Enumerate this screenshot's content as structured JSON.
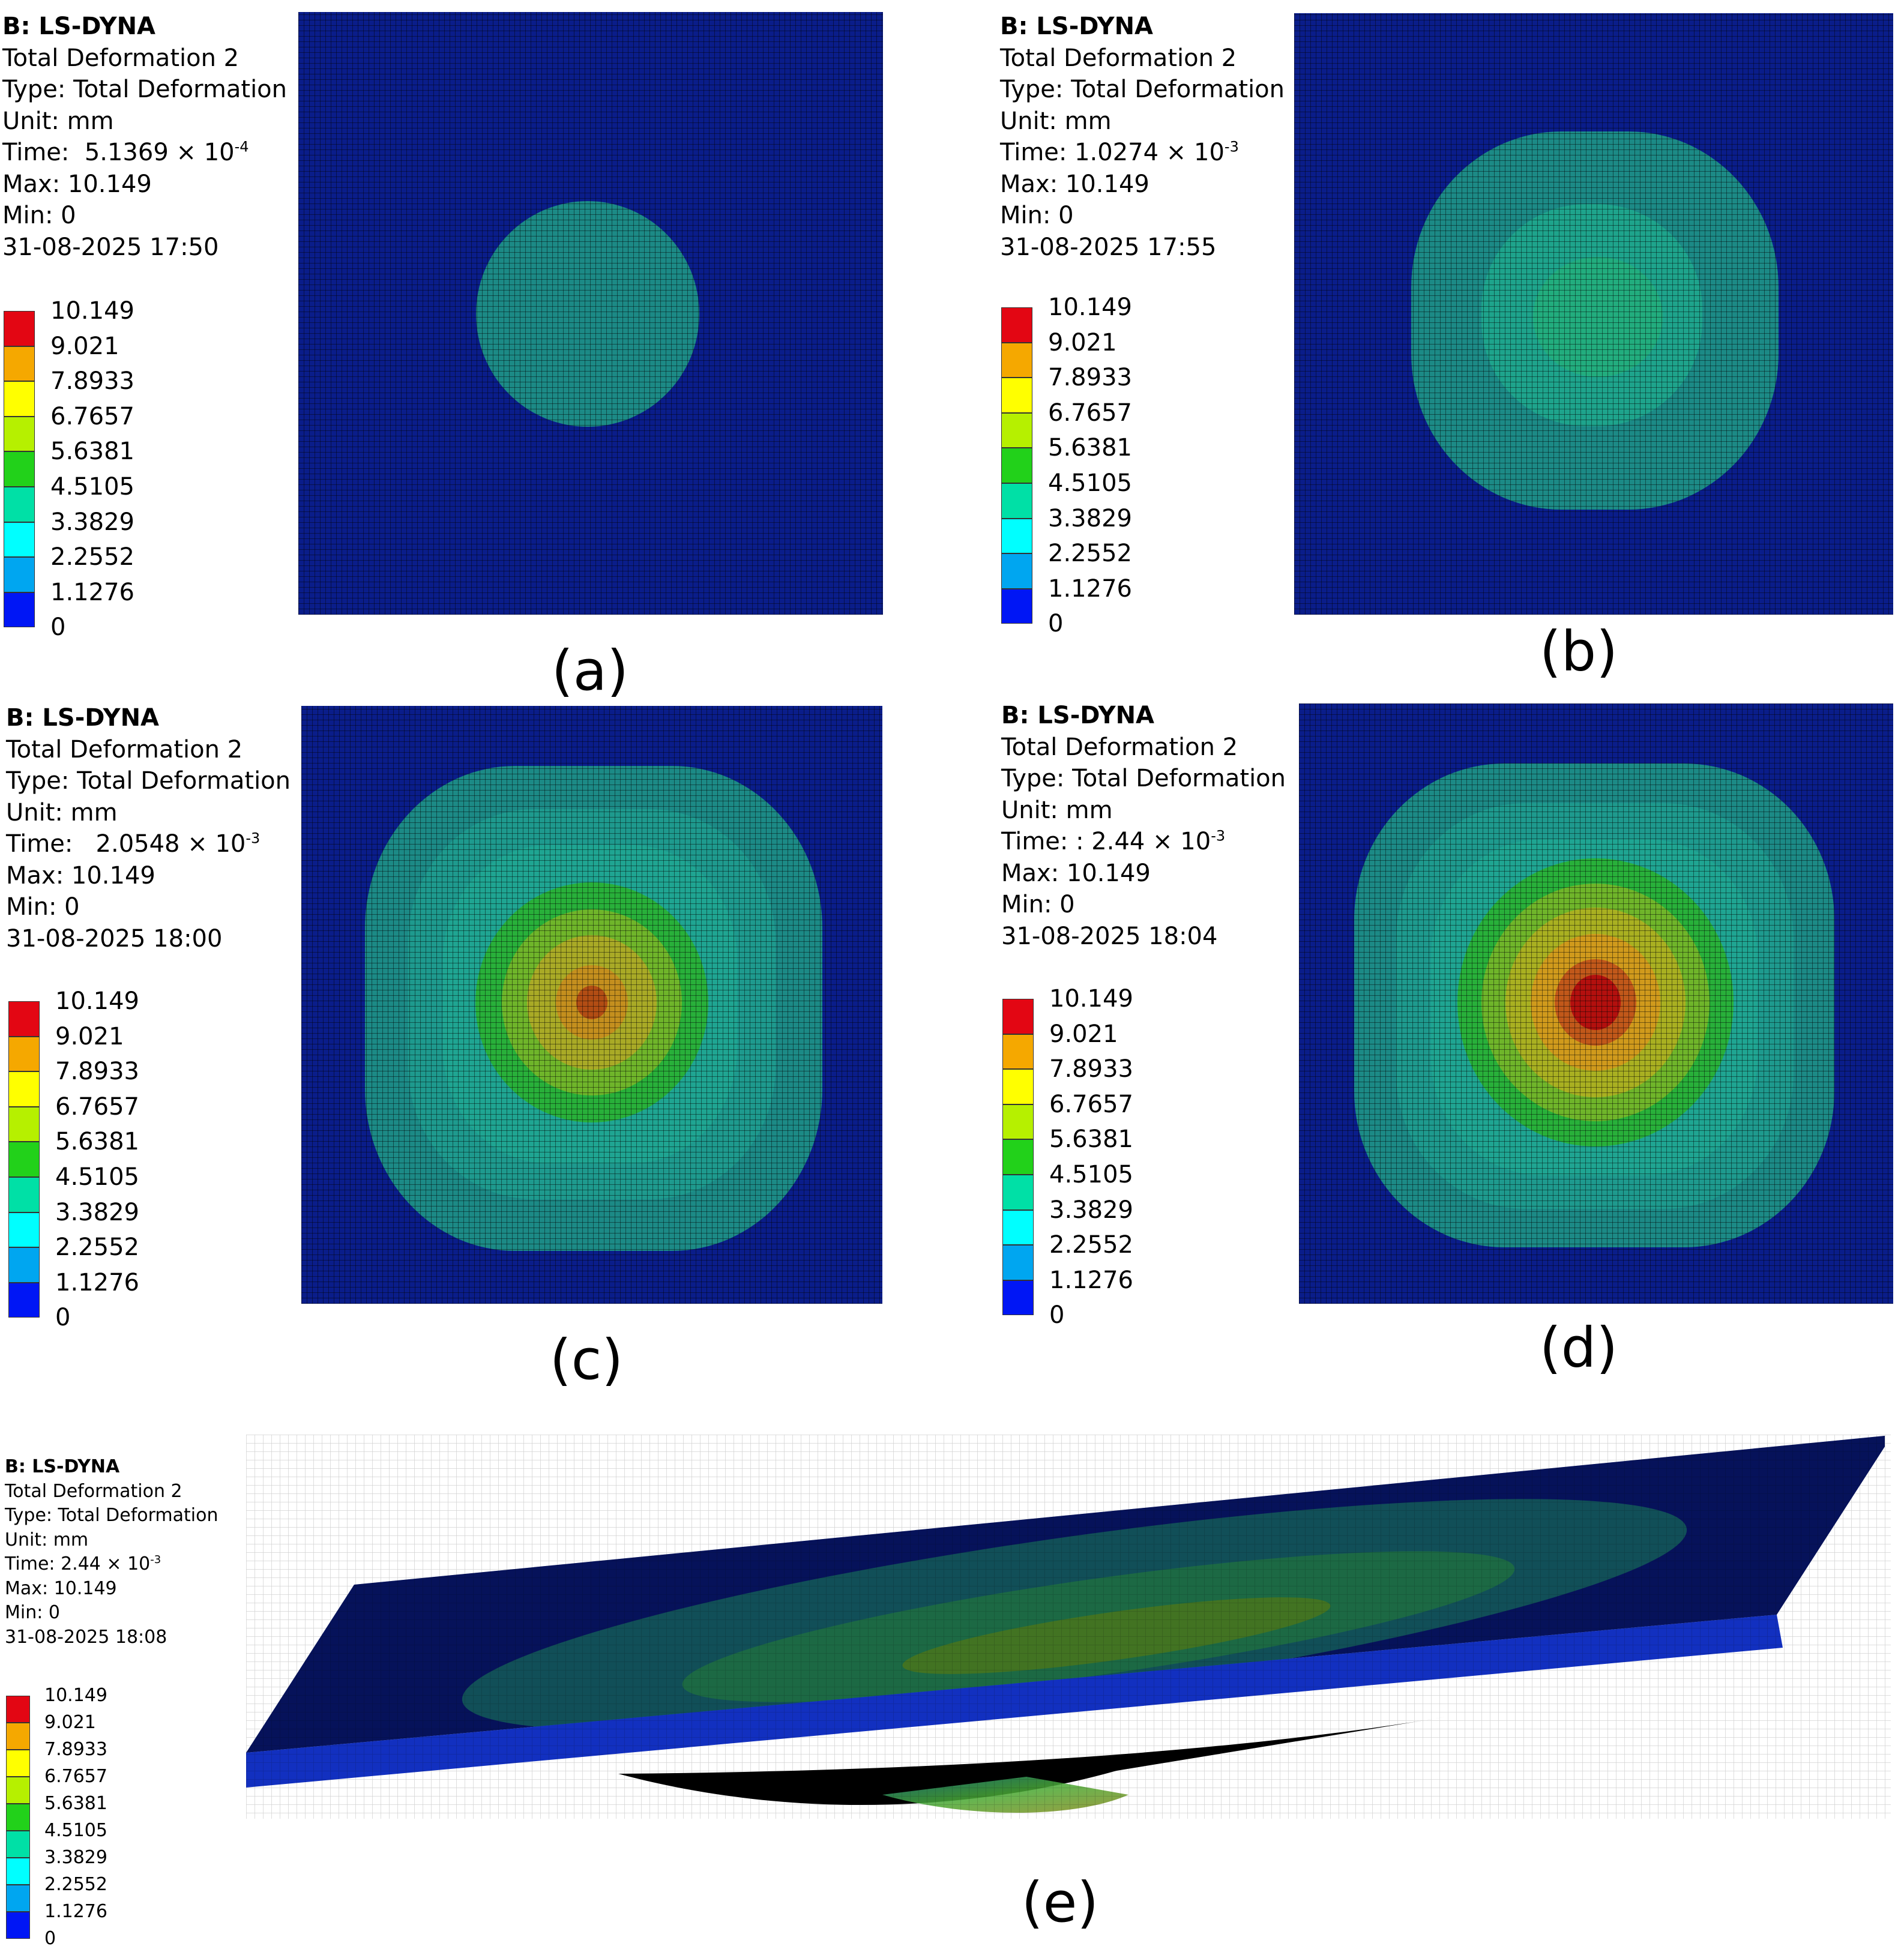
{
  "legend_colors": [
    "#e30613",
    "#f5a800",
    "#ffff00",
    "#b6f000",
    "#22d11a",
    "#00e0a6",
    "#00ffff",
    "#00a6f0",
    "#0016f5"
  ],
  "legend_values": [
    "10.149",
    "9.021",
    "7.8933",
    "6.7657",
    "5.6381",
    "4.5105",
    "3.3829",
    "2.2552",
    "1.1276",
    "0"
  ],
  "panels": [
    {
      "id": "a",
      "caption": "(a)",
      "title": "B: LS-DYNA",
      "result": "Total Deformation 2",
      "type": "Type: Total Deformation",
      "unit": "Unit: mm",
      "time_label": "Time:",
      "time_mantissa": "5.1369 × 10",
      "time_exponent": "-4",
      "max": "Max: 10.149",
      "min": "Min: 0",
      "date": "31-08-2025 17:50"
    },
    {
      "id": "b",
      "caption": "(b)",
      "title": "B: LS-DYNA",
      "result": "Total Deformation 2",
      "type": "Type: Total Deformation",
      "unit": "Unit: mm",
      "time_label": "Time:",
      "time_mantissa": "1.0274 × 10",
      "time_exponent": "-3",
      "max": "Max: 10.149",
      "min": "Min: 0",
      "date": "31-08-2025 17:55"
    },
    {
      "id": "c",
      "caption": "(c)",
      "title": "B: LS-DYNA",
      "result": "Total Deformation 2",
      "type": "Type: Total Deformation",
      "unit": "Unit: mm",
      "time_label": "Time:",
      "time_mantissa": "2.0548 × 10",
      "time_exponent": "-3",
      "max": "Max: 10.149",
      "min": "Min: 0",
      "date": "31-08-2025 18:00"
    },
    {
      "id": "d",
      "caption": "(d)",
      "title": "B: LS-DYNA",
      "result": "Total Deformation 2",
      "type": "Type: Total Deformation",
      "unit": "Unit: mm",
      "time_label": "Time: :",
      "time_mantissa": "2.44 × 10",
      "time_exponent": "-3",
      "max": "Max: 10.149",
      "min": "Min: 0",
      "date": "31-08-2025 18:04"
    },
    {
      "id": "e",
      "caption": "(e)",
      "title": "B: LS-DYNA",
      "result": "Total Deformation 2",
      "type": "Type: Total Deformation",
      "unit": "Unit: mm",
      "time_label": "Time:",
      "time_mantissa": "2.44 × 10",
      "time_exponent": "-3",
      "max": "Max: 10.149",
      "min": "Min: 0",
      "date": "31-08-2025 18:08"
    }
  ]
}
